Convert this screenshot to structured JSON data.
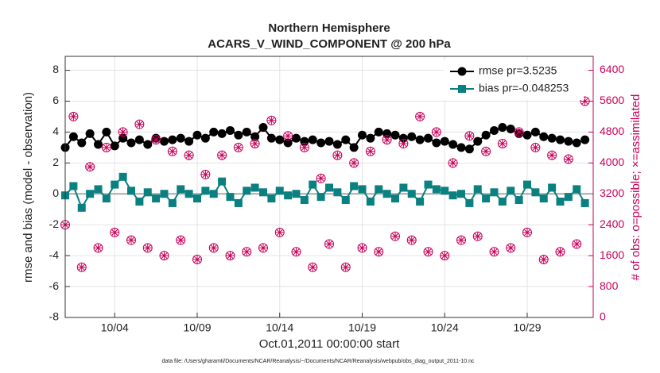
{
  "chart_data": {
    "type": "line",
    "title": "Northern Hemisphere",
    "subtitle": "ACARS_V_WIND_COMPONENT @ 200 hPa",
    "x_label": "Oct.01,2011 00:00:00 start",
    "y_label": "rmse and bias (model - observation)",
    "y2_label": "# of obs: o=possible; ×=assimilated",
    "footnote": "data file: /Users/gharamti/Documents/NCAR/Reanalysis/~/Documents/NCAR/Reanalysis/webpub/obs_diag_output_2011-10.nc",
    "x": [
      0,
      0.5,
      1,
      1.5,
      2,
      2.5,
      3,
      3.5,
      4,
      4.5,
      5,
      5.5,
      6,
      6.5,
      7,
      7.5,
      8,
      8.5,
      9,
      9.5,
      10,
      10.5,
      11,
      11.5,
      12,
      12.5,
      13,
      13.5,
      14,
      14.5,
      15,
      15.5,
      16,
      16.5,
      17,
      17.5,
      18,
      18.5,
      19,
      19.5,
      20,
      20.5,
      21,
      21.5,
      22,
      22.5,
      23,
      23.5,
      24,
      24.5,
      25,
      25.5,
      26,
      26.5,
      27,
      27.5,
      28,
      28.5,
      29,
      29.5,
      30,
      30.5,
      31,
      31.5
    ],
    "xlim": [
      0,
      32
    ],
    "xticks": [
      {
        "value": 3,
        "label": "10/04"
      },
      {
        "value": 8,
        "label": "10/09"
      },
      {
        "value": 13,
        "label": "10/14"
      },
      {
        "value": 18,
        "label": "10/19"
      },
      {
        "value": 23,
        "label": "10/24"
      },
      {
        "value": 28,
        "label": "10/29"
      }
    ],
    "ylim": [
      -8,
      8.9
    ],
    "yticks": [
      -8,
      -6,
      -4,
      -2,
      0,
      2,
      4,
      6,
      8
    ],
    "y2lim": [
      0,
      6760
    ],
    "y2ticks": [
      0,
      800,
      1600,
      2400,
      3200,
      4000,
      4800,
      5600,
      6400
    ],
    "grid": true,
    "legend": "upper right",
    "series": [
      {
        "name": "rmse pr=3.5235",
        "color": "#000000",
        "marker": "circle",
        "values": [
          3.0,
          3.7,
          3.3,
          3.9,
          3.2,
          4.0,
          3.1,
          3.6,
          3.3,
          3.5,
          3.2,
          3.6,
          3.4,
          3.5,
          3.6,
          3.4,
          3.8,
          3.6,
          4.0,
          3.9,
          4.1,
          3.8,
          4.0,
          3.7,
          4.3,
          3.6,
          3.5,
          3.3,
          3.6,
          3.4,
          3.5,
          3.3,
          3.4,
          3.2,
          3.5,
          3.0,
          3.8,
          3.6,
          4.0,
          3.9,
          3.8,
          3.6,
          3.7,
          3.5,
          3.6,
          3.3,
          3.4,
          3.2,
          3.0,
          2.9,
          3.4,
          3.8,
          4.1,
          4.3,
          4.2,
          3.9,
          3.8,
          4.0,
          3.7,
          3.6,
          3.5,
          3.4,
          3.3,
          3.5
        ]
      },
      {
        "name": "bias pr=-0.048253",
        "color": "#0a8080",
        "marker": "square",
        "values": [
          -0.1,
          0.5,
          -0.9,
          0.0,
          0.3,
          -0.3,
          0.6,
          1.1,
          0.2,
          -0.5,
          0.1,
          -0.3,
          0.0,
          -0.6,
          0.3,
          0.0,
          -0.3,
          0.2,
          0.0,
          0.8,
          -0.2,
          -0.6,
          0.2,
          0.4,
          0.1,
          -0.3,
          0.2,
          -0.1,
          0.0,
          -0.4,
          0.6,
          -0.2,
          0.4,
          0.1,
          -0.4,
          0.5,
          0.3,
          -0.5,
          0.3,
          0.0,
          -0.3,
          0.4,
          0.0,
          -0.5,
          0.6,
          0.3,
          0.2,
          -0.1,
          0.0,
          -0.6,
          0.3,
          -0.3,
          0.1,
          -0.5,
          0.2,
          -0.4,
          0.6,
          0.1,
          -0.3,
          0.4,
          -0.5,
          -0.2,
          0.3,
          -0.6
        ]
      },
      {
        "color": "#c8005a",
        "marker": "open-circle",
        "axis": "y2",
        "values": [
          2400,
          5200,
          1300,
          3900,
          1800,
          4400,
          2200,
          4800,
          2000,
          5000,
          1800,
          4600,
          1600,
          4300,
          2000,
          4200,
          1500,
          3700,
          1800,
          4200,
          1600,
          4400,
          1700,
          4500,
          1800,
          5100,
          2200,
          4700,
          1700,
          4400,
          1300,
          3600,
          1900,
          4200,
          1300,
          4000,
          1800,
          4300,
          1700,
          4600,
          2100,
          4500,
          2000,
          5200,
          1700,
          4800,
          1600,
          4000,
          2000,
          4700,
          2100,
          4300,
          1700,
          4500,
          1800,
          4800,
          2200,
          4400,
          1500,
          4200,
          1700,
          4100,
          1900,
          5600
        ]
      },
      {
        "color": "#c8005a",
        "marker": "asterisk",
        "axis": "y2",
        "values": [
          2400,
          5200,
          1300,
          3900,
          1800,
          4400,
          2200,
          4800,
          2000,
          5000,
          1800,
          4600,
          1600,
          4300,
          2000,
          4200,
          1500,
          3700,
          1800,
          4200,
          1600,
          4400,
          1700,
          4500,
          1800,
          5100,
          2200,
          4700,
          1700,
          4400,
          1300,
          3600,
          1900,
          4200,
          1300,
          4000,
          1800,
          4300,
          1700,
          4600,
          2100,
          4500,
          2000,
          5200,
          1700,
          4800,
          1600,
          4000,
          2000,
          4700,
          2100,
          4300,
          1700,
          4500,
          1800,
          4800,
          2200,
          4400,
          1500,
          4200,
          1700,
          4100,
          1900,
          5600
        ]
      }
    ]
  }
}
